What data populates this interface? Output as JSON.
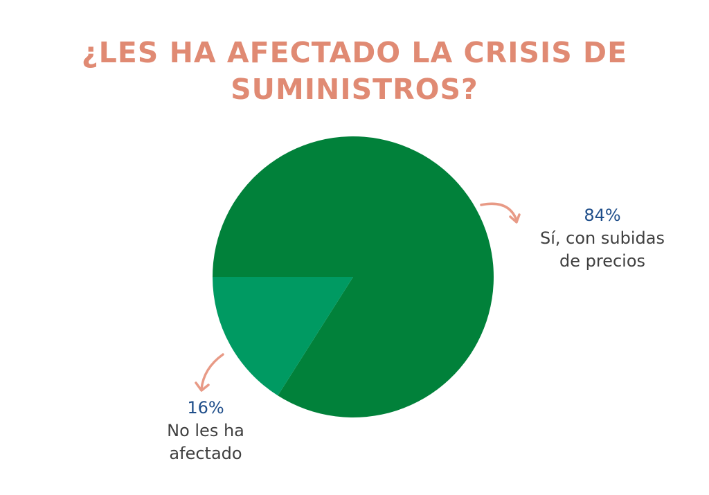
{
  "colors": {
    "title": "#E08A73",
    "arrow": "#E89A86",
    "value_text": "#1F4E8A",
    "label_text": "#3F3F3F",
    "slice_si": "#01813A",
    "slice_no": "#009A62"
  },
  "chart_data": {
    "type": "pie",
    "title": "¿LES HA AFECTADO LA CRISIS DE SUMINISTROS?",
    "slices": [
      {
        "label": "Sí, con subidas de precios",
        "value": 84,
        "value_label": "84%",
        "color": "#01813A"
      },
      {
        "label": "No les ha afectado",
        "value": 16,
        "value_label": "16%",
        "color": "#009A62"
      }
    ],
    "legend": "none",
    "data_labels": "outside-with-arrows"
  }
}
